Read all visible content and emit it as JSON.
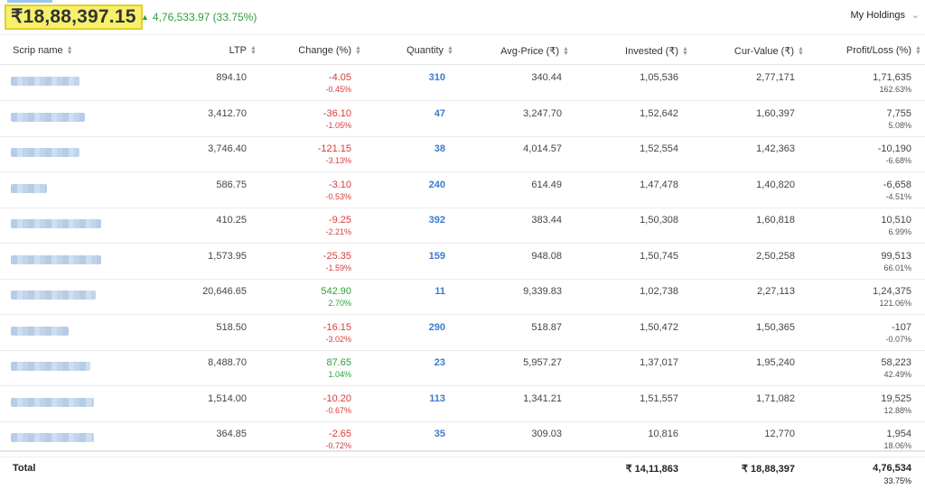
{
  "summary": {
    "total_value": "₹18,88,397.15",
    "day_change": "4,76,533.97 (33.75%)",
    "view_label": "My Holdings"
  },
  "columns": [
    "Scrip name",
    "LTP",
    "Change (%)",
    "Quantity",
    "Avg-Price (₹)",
    "Invested (₹)",
    "Cur-Value (₹)",
    "Profit/Loss (%)"
  ],
  "rows": [
    {
      "ltp": "894.10",
      "chg": "-4.05",
      "chg_pct": "-0.45%",
      "dir": "down",
      "qty": "310",
      "avg": "340.44",
      "inv": "1,05,536",
      "cur": "2,77,171",
      "pl": "1,71,635",
      "pl_pct": "162.63%"
    },
    {
      "ltp": "3,412.70",
      "chg": "-36.10",
      "chg_pct": "-1.05%",
      "dir": "down",
      "qty": "47",
      "avg": "3,247.70",
      "inv": "1,52,642",
      "cur": "1,60,397",
      "pl": "7,755",
      "pl_pct": "5.08%"
    },
    {
      "ltp": "3,746.40",
      "chg": "-121.15",
      "chg_pct": "-3.13%",
      "dir": "down",
      "qty": "38",
      "avg": "4,014.57",
      "inv": "1,52,554",
      "cur": "1,42,363",
      "pl": "-10,190",
      "pl_pct": "-6.68%"
    },
    {
      "ltp": "586.75",
      "chg": "-3.10",
      "chg_pct": "-0.53%",
      "dir": "down",
      "qty": "240",
      "avg": "614.49",
      "inv": "1,47,478",
      "cur": "1,40,820",
      "pl": "-6,658",
      "pl_pct": "-4.51%"
    },
    {
      "ltp": "410.25",
      "chg": "-9.25",
      "chg_pct": "-2.21%",
      "dir": "down",
      "qty": "392",
      "avg": "383.44",
      "inv": "1,50,308",
      "cur": "1,60,818",
      "pl": "10,510",
      "pl_pct": "6.99%"
    },
    {
      "ltp": "1,573.95",
      "chg": "-25.35",
      "chg_pct": "-1.59%",
      "dir": "down",
      "qty": "159",
      "avg": "948.08",
      "inv": "1,50,745",
      "cur": "2,50,258",
      "pl": "99,513",
      "pl_pct": "66.01%"
    },
    {
      "ltp": "20,646.65",
      "chg": "542.90",
      "chg_pct": "2.70%",
      "dir": "up",
      "qty": "11",
      "avg": "9,339.83",
      "inv": "1,02,738",
      "cur": "2,27,113",
      "pl": "1,24,375",
      "pl_pct": "121.06%"
    },
    {
      "ltp": "518.50",
      "chg": "-16.15",
      "chg_pct": "-3.02%",
      "dir": "down",
      "qty": "290",
      "avg": "518.87",
      "inv": "1,50,472",
      "cur": "1,50,365",
      "pl": "-107",
      "pl_pct": "-0.07%"
    },
    {
      "ltp": "8,488.70",
      "chg": "87.65",
      "chg_pct": "1.04%",
      "dir": "up",
      "qty": "23",
      "avg": "5,957.27",
      "inv": "1,37,017",
      "cur": "1,95,240",
      "pl": "58,223",
      "pl_pct": "42.49%"
    },
    {
      "ltp": "1,514.00",
      "chg": "-10.20",
      "chg_pct": "-0.67%",
      "dir": "down",
      "qty": "113",
      "avg": "1,341.21",
      "inv": "1,51,557",
      "cur": "1,71,082",
      "pl": "19,525",
      "pl_pct": "12.88%"
    },
    {
      "ltp": "364.85",
      "chg": "-2.65",
      "chg_pct": "-0.72%",
      "dir": "down",
      "qty": "35",
      "avg": "309.03",
      "inv": "10,816",
      "cur": "12,770",
      "pl": "1,954",
      "pl_pct": "18.06%"
    }
  ],
  "totals": {
    "label": "Total",
    "invested": "₹ 14,11,863",
    "current": "₹ 18,88,397",
    "pl": "4,76,534",
    "pl_pct": "33.75%"
  },
  "colors": {
    "positive": "#2e9e3a",
    "negative": "#d93b3b",
    "quantity": "#3a7ad0",
    "highlight": "#f6f06a"
  },
  "icons": {
    "sort": "sort-both-icon",
    "trend": "triangle-up-icon",
    "dropdown": "chevron-down-icon"
  }
}
